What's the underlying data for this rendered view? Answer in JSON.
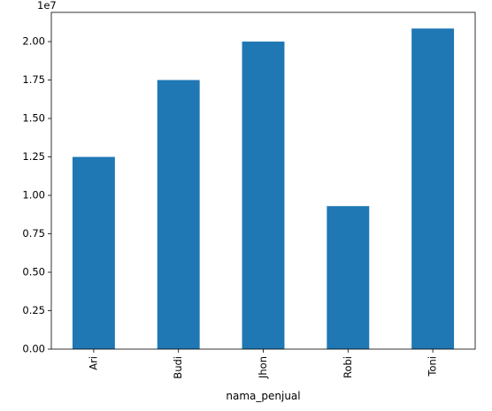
{
  "chart_data": {
    "type": "bar",
    "categories": [
      "Ari",
      "Budi",
      "Jhon",
      "Robi",
      "Toni"
    ],
    "values": [
      12500000,
      17500000,
      20000000,
      9300000,
      20850000
    ],
    "title": "",
    "xlabel": "nama_penjual",
    "ylabel": "",
    "ylim": [
      0,
      21900000
    ],
    "y_offset_label": "1e7",
    "y_ticks": [
      0,
      2500000,
      5000000,
      7500000,
      10000000,
      12500000,
      15000000,
      17500000,
      20000000
    ],
    "y_tick_labels": [
      "0.00",
      "0.25",
      "0.50",
      "0.75",
      "1.00",
      "1.25",
      "1.50",
      "1.75",
      "2.00"
    ],
    "x_tick_rotation_deg": 90,
    "bar_color": "#1f77b4",
    "grid": false,
    "legend": "none"
  }
}
